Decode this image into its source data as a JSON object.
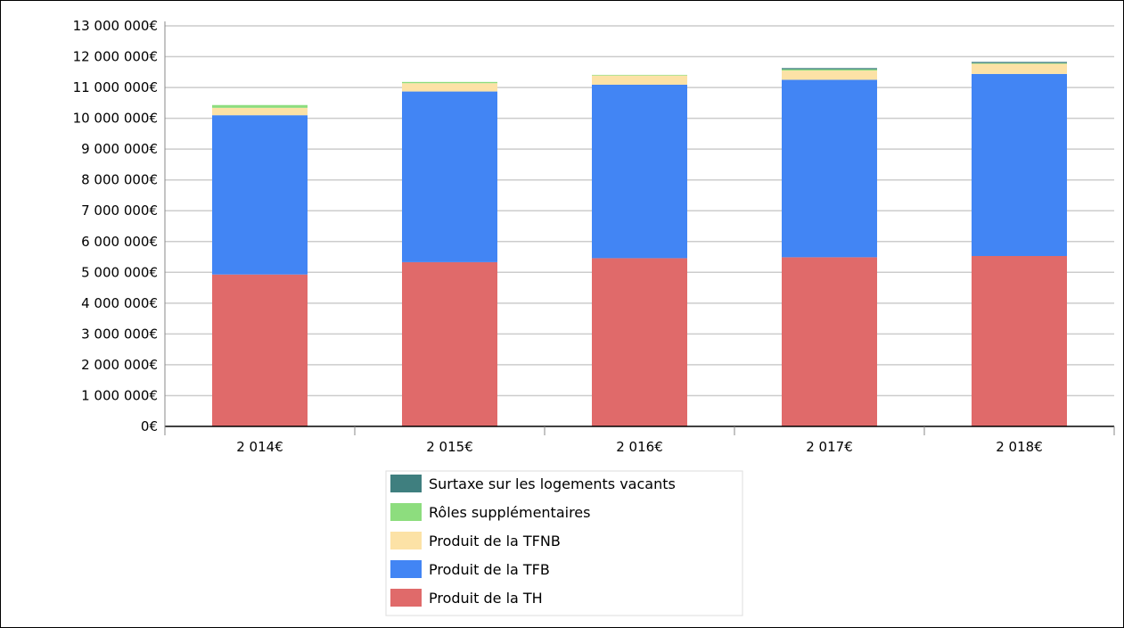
{
  "chart_data": {
    "type": "bar",
    "stacked": true,
    "categories": [
      "2 014€",
      "2 015€",
      "2 016€",
      "2 017€",
      "2 018€"
    ],
    "ylim": [
      0,
      13000000
    ],
    "ytick_labels": [
      "0€",
      "1 000 000€",
      "2 000 000€",
      "3 000 000€",
      "4 000 000€",
      "5 000 000€",
      "6 000 000€",
      "7 000 000€",
      "8 000 000€",
      "9 000 000€",
      "10 000 000€",
      "11 000 000€",
      "12 000 000€",
      "13 000 000€"
    ],
    "grid": true,
    "legend_position": "bottom",
    "series": [
      {
        "name": "Produit de la TH",
        "color": "#e06a6a",
        "values": [
          4930000,
          5330000,
          5460000,
          5490000,
          5530000
        ]
      },
      {
        "name": "Produit de la TFB",
        "color": "#4285f4",
        "values": [
          5170000,
          5540000,
          5630000,
          5760000,
          5910000
        ]
      },
      {
        "name": "Produit de la TFNB",
        "color": "#fce2a6",
        "values": [
          240000,
          270000,
          300000,
          300000,
          330000
        ]
      },
      {
        "name": "Rôles supplémentaires",
        "color": "#8ddd7e",
        "values": [
          90000,
          40000,
          20000,
          40000,
          20000
        ]
      },
      {
        "name": "Surtaxe sur les logements vacants",
        "color": "#3f7f7f",
        "values": [
          0,
          0,
          0,
          40000,
          40000
        ]
      }
    ],
    "legend_order": [
      "Surtaxe sur les logements vacants",
      "Rôles supplémentaires",
      "Produit de la TFNB",
      "Produit de la TFB",
      "Produit de la TH"
    ]
  }
}
